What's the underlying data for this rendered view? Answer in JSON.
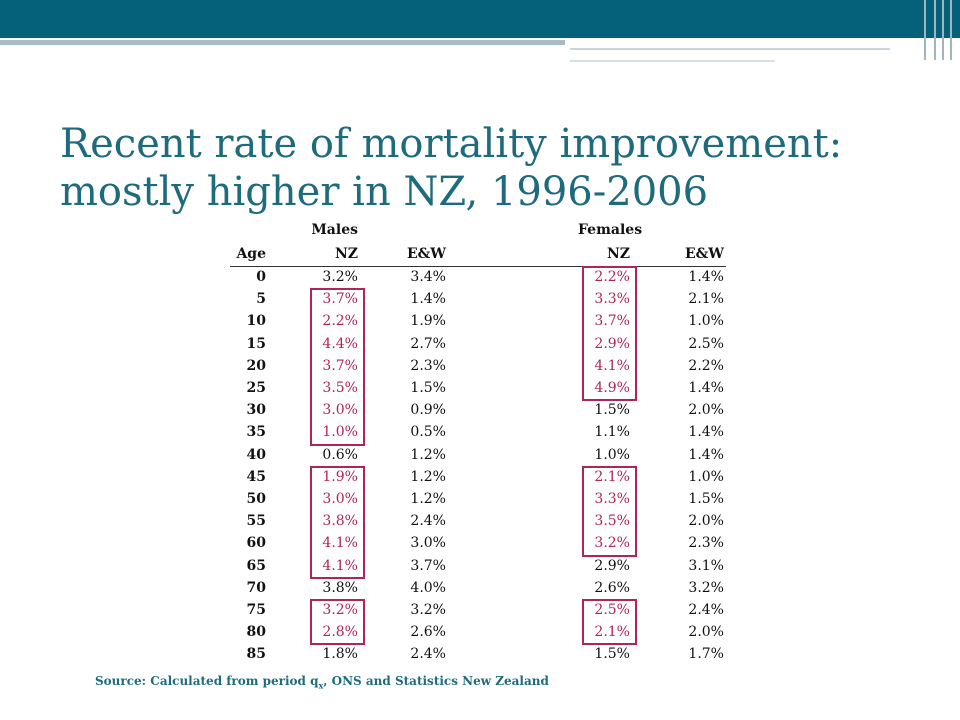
{
  "title_line1": "Recent rate of mortality improvement:",
  "title_line2": "mostly higher in NZ, 1996-2006",
  "table": {
    "group_males": "Males",
    "group_females": "Females",
    "col_age": "Age",
    "col_nz_m": "NZ",
    "col_ew_m": "E&W",
    "col_nz_f": "NZ",
    "col_ew_f": "E&W",
    "rows": [
      {
        "age": "0",
        "m_nz": "3.2%",
        "m_ew": "3.4%",
        "f_nz": "2.2%",
        "f_ew": "1.4%"
      },
      {
        "age": "5",
        "m_nz": "3.7%",
        "m_ew": "1.4%",
        "f_nz": "3.3%",
        "f_ew": "2.1%"
      },
      {
        "age": "10",
        "m_nz": "2.2%",
        "m_ew": "1.9%",
        "f_nz": "3.7%",
        "f_ew": "1.0%"
      },
      {
        "age": "15",
        "m_nz": "4.4%",
        "m_ew": "2.7%",
        "f_nz": "2.9%",
        "f_ew": "2.5%"
      },
      {
        "age": "20",
        "m_nz": "3.7%",
        "m_ew": "2.3%",
        "f_nz": "4.1%",
        "f_ew": "2.2%"
      },
      {
        "age": "25",
        "m_nz": "3.5%",
        "m_ew": "1.5%",
        "f_nz": "4.9%",
        "f_ew": "1.4%"
      },
      {
        "age": "30",
        "m_nz": "3.0%",
        "m_ew": "0.9%",
        "f_nz": "1.5%",
        "f_ew": "2.0%"
      },
      {
        "age": "35",
        "m_nz": "1.0%",
        "m_ew": "0.5%",
        "f_nz": "1.1%",
        "f_ew": "1.4%"
      },
      {
        "age": "40",
        "m_nz": "0.6%",
        "m_ew": "1.2%",
        "f_nz": "1.0%",
        "f_ew": "1.4%"
      },
      {
        "age": "45",
        "m_nz": "1.9%",
        "m_ew": "1.2%",
        "f_nz": "2.1%",
        "f_ew": "1.0%"
      },
      {
        "age": "50",
        "m_nz": "3.0%",
        "m_ew": "1.2%",
        "f_nz": "3.3%",
        "f_ew": "1.5%"
      },
      {
        "age": "55",
        "m_nz": "3.8%",
        "m_ew": "2.4%",
        "f_nz": "3.5%",
        "f_ew": "2.0%"
      },
      {
        "age": "60",
        "m_nz": "4.1%",
        "m_ew": "3.0%",
        "f_nz": "3.2%",
        "f_ew": "2.3%"
      },
      {
        "age": "65",
        "m_nz": "4.1%",
        "m_ew": "3.7%",
        "f_nz": "2.9%",
        "f_ew": "3.1%"
      },
      {
        "age": "70",
        "m_nz": "3.8%",
        "m_ew": "4.0%",
        "f_nz": "2.6%",
        "f_ew": "3.2%"
      },
      {
        "age": "75",
        "m_nz": "3.2%",
        "m_ew": "3.2%",
        "f_nz": "2.5%",
        "f_ew": "2.4%"
      },
      {
        "age": "80",
        "m_nz": "2.8%",
        "m_ew": "2.6%",
        "f_nz": "2.1%",
        "f_ew": "2.0%"
      },
      {
        "age": "85",
        "m_nz": "1.8%",
        "m_ew": "2.4%",
        "f_nz": "1.5%",
        "f_ew": "1.7%"
      }
    ],
    "highlight_color": "#b0245c"
  },
  "source_pre": "Source: Calculated from period q",
  "source_sub": "x",
  "source_post": ", ONS and Statistics New Zealand",
  "colors": {
    "header_bar": "#05607a",
    "title": "#1e6b7e",
    "highlight": "#b0245c"
  }
}
